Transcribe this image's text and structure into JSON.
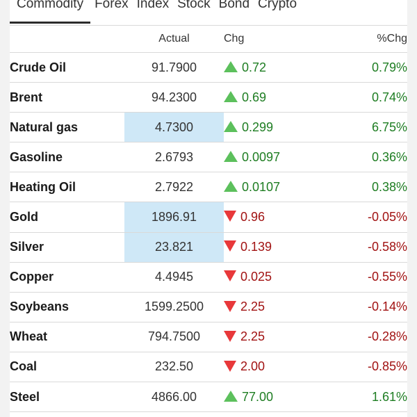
{
  "tabs": [
    "Commodity",
    "Forex",
    "Index",
    "Stock",
    "Bond",
    "Crypto"
  ],
  "columns": {
    "actual": "Actual",
    "chg": "Chg",
    "pct": "%Chg"
  },
  "rows": [
    {
      "name": "Crude Oil",
      "actual": "91.7900",
      "chg": "0.72",
      "pct": "0.79%",
      "dir": "up",
      "highlight": false
    },
    {
      "name": "Brent",
      "actual": "94.2300",
      "chg": "0.69",
      "pct": "0.74%",
      "dir": "up",
      "highlight": false
    },
    {
      "name": "Natural gas",
      "actual": "4.7300",
      "chg": "0.299",
      "pct": "6.75%",
      "dir": "up",
      "highlight": true
    },
    {
      "name": "Gasoline",
      "actual": "2.6793",
      "chg": "0.0097",
      "pct": "0.36%",
      "dir": "up",
      "highlight": false
    },
    {
      "name": "Heating Oil",
      "actual": "2.7922",
      "chg": "0.0107",
      "pct": "0.38%",
      "dir": "up",
      "highlight": false
    },
    {
      "name": "Gold",
      "actual": "1896.91",
      "chg": "0.96",
      "pct": "-0.05%",
      "dir": "down",
      "highlight": true
    },
    {
      "name": "Silver",
      "actual": "23.821",
      "chg": "0.139",
      "pct": "-0.58%",
      "dir": "down",
      "highlight": true
    },
    {
      "name": "Copper",
      "actual": "4.4945",
      "chg": "0.025",
      "pct": "-0.55%",
      "dir": "down",
      "highlight": false
    },
    {
      "name": "Soybeans",
      "actual": "1599.2500",
      "chg": "2.25",
      "pct": "-0.14%",
      "dir": "down",
      "highlight": false
    },
    {
      "name": "Wheat",
      "actual": "794.7500",
      "chg": "2.25",
      "pct": "-0.28%",
      "dir": "down",
      "highlight": false
    },
    {
      "name": "Coal",
      "actual": "232.50",
      "chg": "2.00",
      "pct": "-0.85%",
      "dir": "down",
      "highlight": false
    },
    {
      "name": "Steel",
      "actual": "4866.00",
      "chg": "77.00",
      "pct": "1.61%",
      "dir": "up",
      "highlight": false
    }
  ],
  "colors": {
    "up_text": "#1e7d22",
    "down_text": "#a11212",
    "up_arrow": "#5cc05c",
    "down_arrow": "#e8383a",
    "highlight": "#cfe8f7"
  },
  "icons": {
    "up": "triangle-up-icon",
    "down": "triangle-down-icon"
  }
}
